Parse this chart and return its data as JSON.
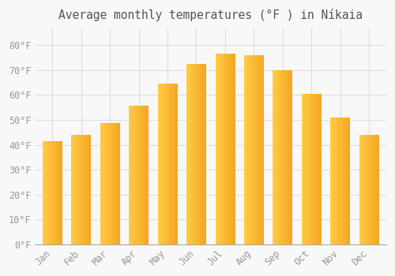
{
  "title": "Average monthly temperatures (°F ) in Níkaia",
  "months": [
    "Jan",
    "Feb",
    "Mar",
    "Apr",
    "May",
    "Jun",
    "Jul",
    "Aug",
    "Sep",
    "Oct",
    "Nov",
    "Dec"
  ],
  "values": [
    41.5,
    44.0,
    48.5,
    55.5,
    64.5,
    72.5,
    76.5,
    76.0,
    70.0,
    60.5,
    51.0,
    44.0
  ],
  "bar_color_left": "#FFCC44",
  "bar_color_right": "#F5A623",
  "background_color": "#F8F8F8",
  "grid_color": "#DDDDDD",
  "tick_color": "#999999",
  "title_color": "#555555",
  "ylim": [
    0,
    87
  ],
  "yticks": [
    0,
    10,
    20,
    30,
    40,
    50,
    60,
    70,
    80
  ],
  "title_fontsize": 10.5,
  "tick_fontsize": 8.5,
  "bar_width": 0.68
}
